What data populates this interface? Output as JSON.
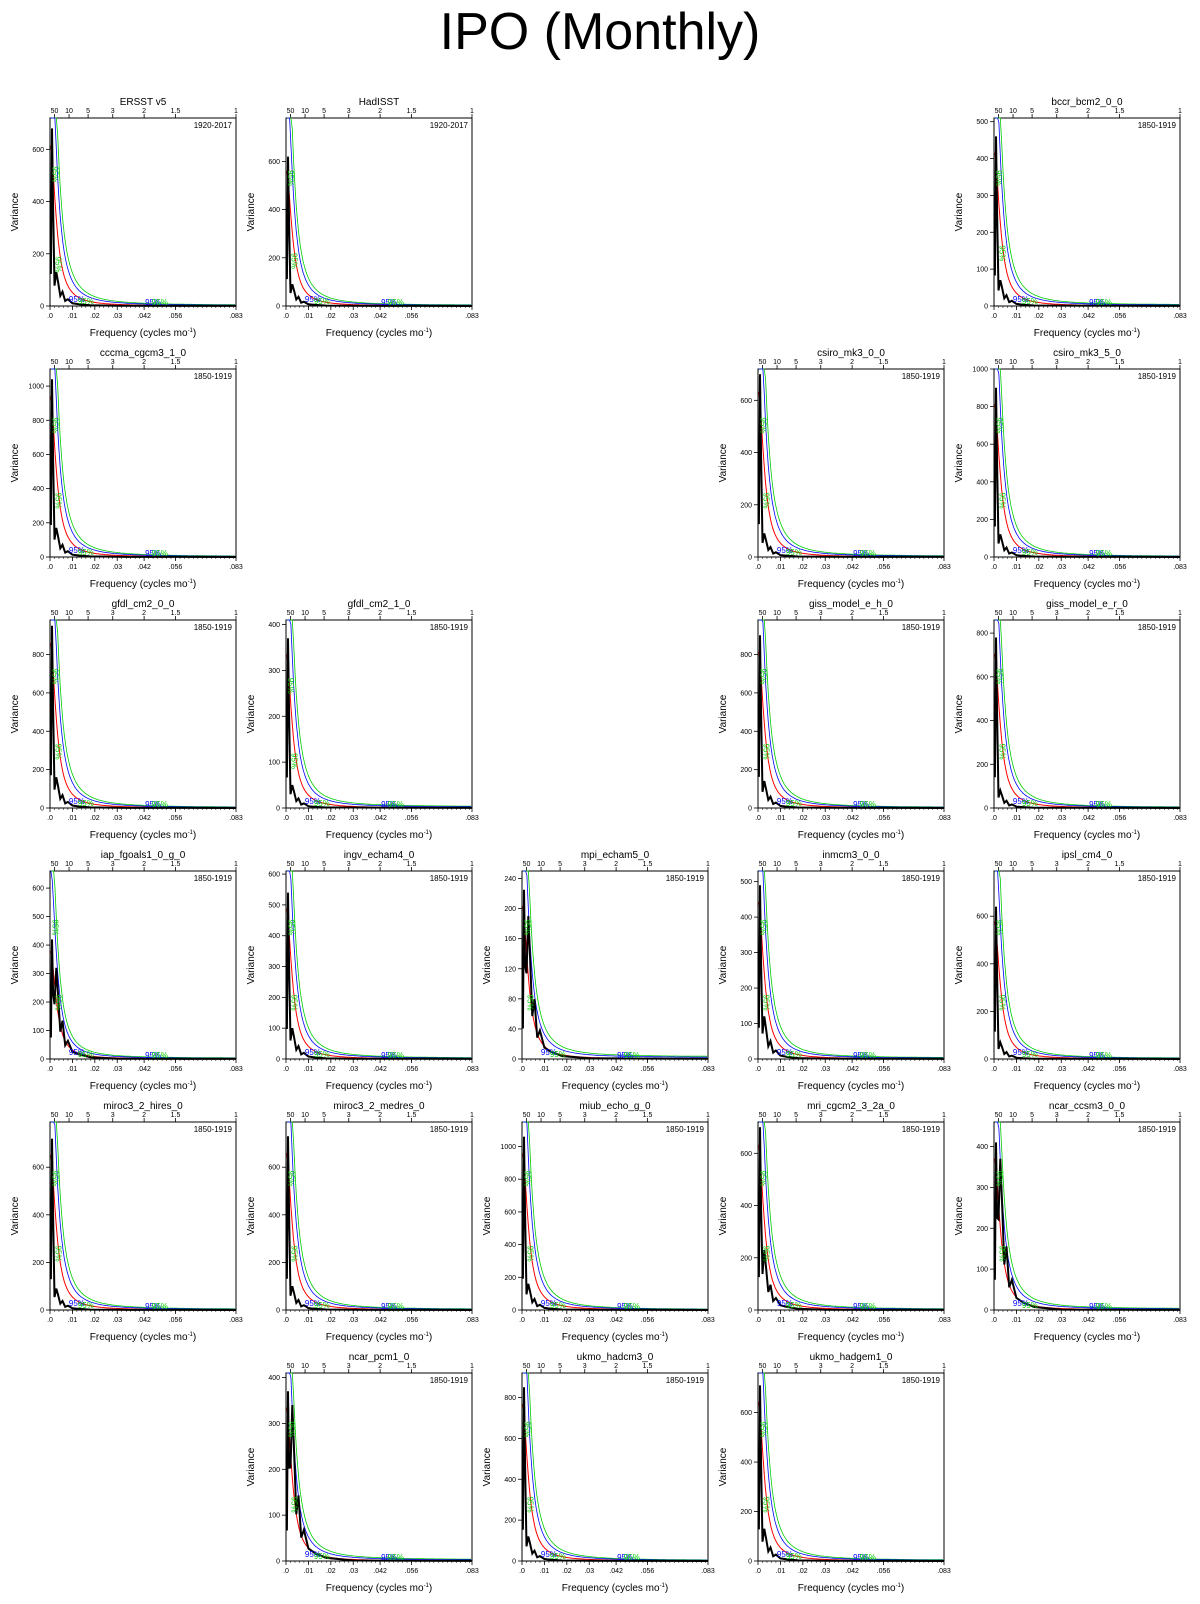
{
  "page": {
    "title": "IPO (Monthly)"
  },
  "panel_labels": {
    "xlabel_main": "Frequency (cycles mo",
    "xlabel_sup": "-1",
    "xlabel_end": ")",
    "ylabel": "Variance",
    "sig_label": "95%",
    "xticks": [
      ".0",
      ".01",
      ".02",
      ".03",
      ".042",
      ".056",
      ".083"
    ],
    "period_ticks": [
      "50",
      "10",
      "5",
      "3",
      "2",
      "1.5",
      "1"
    ]
  },
  "colors": {
    "spectrum": "#000000",
    "red_noise": "#ff0000",
    "sig_95": "#0000ff",
    "sig_99": "#00cc00"
  },
  "chart_data": [
    {
      "type": "line",
      "title": "ERSST v5",
      "period": "1920-2017",
      "ylabel": "Variance",
      "xlim": [
        0,
        0.083
      ],
      "ylim": [
        0,
        720
      ],
      "yticks": [
        0,
        200,
        400,
        600
      ],
      "peak": 680,
      "sec": 130,
      "sig_pct_a": 0.7,
      "sig_pct_b": 0.22
    },
    {
      "type": "line",
      "title": "HadISST",
      "period": "1920-2017",
      "ylabel": "Variance",
      "xlim": [
        0,
        0.083
      ],
      "ylim": [
        0,
        780
      ],
      "yticks": [
        0,
        200,
        400,
        600
      ],
      "peak": 620,
      "sec": 90,
      "sig_pct_a": 0.68,
      "sig_pct_b": 0.24
    },
    {
      "type": "line",
      "title": "bccr_bcm2_0_0",
      "period": "1850-1919",
      "ylabel": "Variance",
      "xlim": [
        0,
        0.083
      ],
      "ylim": [
        0,
        510
      ],
      "yticks": [
        0,
        100,
        200,
        300,
        400,
        500
      ],
      "peak": 460,
      "sec": 70,
      "sig_pct_a": 0.68,
      "sig_pct_b": 0.28
    },
    {
      "type": "line",
      "title": "cccma_cgcm3_1_0",
      "period": "1850-1919",
      "ylabel": "Variance",
      "xlim": [
        0,
        0.083
      ],
      "ylim": [
        0,
        1100
      ],
      "yticks": [
        0,
        200,
        400,
        600,
        800,
        1000
      ],
      "peak": 1040,
      "sec": 170,
      "sig_pct_a": 0.7,
      "sig_pct_b": 0.3
    },
    {
      "type": "line",
      "title": "csiro_mk3_0_0",
      "period": "1850-1919",
      "ylabel": "Variance",
      "xlim": [
        0,
        0.083
      ],
      "ylim": [
        0,
        720
      ],
      "yticks": [
        0,
        200,
        400,
        600
      ],
      "peak": 700,
      "sec": 90,
      "sig_pct_a": 0.7,
      "sig_pct_b": 0.3
    },
    {
      "type": "line",
      "title": "csiro_mk3_5_0",
      "period": "1850-1919",
      "ylabel": "Variance",
      "xlim": [
        0,
        0.083
      ],
      "ylim": [
        0,
        1000
      ],
      "yticks": [
        0,
        200,
        400,
        600,
        800,
        1000
      ],
      "peak": 900,
      "sec": 120,
      "sig_pct_a": 0.7,
      "sig_pct_b": 0.3
    },
    {
      "type": "line",
      "title": "gfdl_cm2_0_0",
      "period": "1850-1919",
      "ylabel": "Variance",
      "xlim": [
        0,
        0.083
      ],
      "ylim": [
        0,
        980
      ],
      "yticks": [
        0,
        200,
        400,
        600,
        800
      ],
      "peak": 950,
      "sec": 160,
      "sig_pct_a": 0.7,
      "sig_pct_b": 0.3
    },
    {
      "type": "line",
      "title": "gfdl_cm2_1_0",
      "period": "1850-1919",
      "ylabel": "Variance",
      "xlim": [
        0,
        0.083
      ],
      "ylim": [
        0,
        410
      ],
      "yticks": [
        0,
        100,
        200,
        300,
        400
      ],
      "peak": 370,
      "sec": 50,
      "sig_pct_a": 0.65,
      "sig_pct_b": 0.25
    },
    {
      "type": "line",
      "title": "giss_model_e_h_0",
      "period": "1850-1919",
      "ylabel": "Variance",
      "xlim": [
        0,
        0.083
      ],
      "ylim": [
        0,
        980
      ],
      "yticks": [
        0,
        200,
        400,
        600,
        800
      ],
      "peak": 900,
      "sec": 140,
      "sig_pct_a": 0.7,
      "sig_pct_b": 0.3
    },
    {
      "type": "line",
      "title": "giss_model_e_r_0",
      "period": "1850-1919",
      "ylabel": "Variance",
      "xlim": [
        0,
        0.083
      ],
      "ylim": [
        0,
        860
      ],
      "yticks": [
        0,
        200,
        400,
        600,
        800
      ],
      "peak": 780,
      "sec": 80,
      "sig_pct_a": 0.7,
      "sig_pct_b": 0.3
    },
    {
      "type": "line",
      "title": "iap_fgoals1_0_g_0",
      "period": "1850-1919",
      "ylabel": "Variance",
      "xlim": [
        0,
        0.083
      ],
      "ylim": [
        0,
        660
      ],
      "yticks": [
        0,
        100,
        200,
        300,
        400,
        500,
        600
      ],
      "peak": 420,
      "sec": 320,
      "sig_pct_a": 0.7,
      "sig_pct_b": 0.3
    },
    {
      "type": "line",
      "title": "ingv_echam4_0",
      "period": "1850-1919",
      "ylabel": "Variance",
      "xlim": [
        0,
        0.083
      ],
      "ylim": [
        0,
        610
      ],
      "yticks": [
        0,
        100,
        200,
        300,
        400,
        500,
        600
      ],
      "peak": 540,
      "sec": 100,
      "sig_pct_a": 0.7,
      "sig_pct_b": 0.3
    },
    {
      "type": "line",
      "title": "mpi_echam5_0",
      "period": "1850-1919",
      "ylabel": "Variance",
      "xlim": [
        0,
        0.083
      ],
      "ylim": [
        0,
        250
      ],
      "yticks": [
        0,
        40,
        80,
        120,
        160,
        200,
        240
      ],
      "peak": 225,
      "sec": 190,
      "sig_pct_a": 0.7,
      "sig_pct_b": 0.3
    },
    {
      "type": "line",
      "title": "inmcm3_0_0",
      "period": "1850-1919",
      "ylabel": "Variance",
      "xlim": [
        0,
        0.083
      ],
      "ylim": [
        0,
        530
      ],
      "yticks": [
        0,
        100,
        200,
        300,
        400,
        500
      ],
      "peak": 490,
      "sec": 120,
      "sig_pct_a": 0.7,
      "sig_pct_b": 0.3
    },
    {
      "type": "line",
      "title": "ipsl_cm4_0",
      "period": "1850-1919",
      "ylabel": "Variance",
      "xlim": [
        0,
        0.083
      ],
      "ylim": [
        0,
        790
      ],
      "yticks": [
        0,
        200,
        400,
        600
      ],
      "peak": 640,
      "sec": 70,
      "sig_pct_a": 0.7,
      "sig_pct_b": 0.3
    },
    {
      "type": "line",
      "title": "miroc3_2_hires_0",
      "period": "1850-1919",
      "ylabel": "Variance",
      "xlim": [
        0,
        0.083
      ],
      "ylim": [
        0,
        790
      ],
      "yticks": [
        0,
        200,
        400,
        600
      ],
      "peak": 720,
      "sec": 90,
      "sig_pct_a": 0.7,
      "sig_pct_b": 0.3
    },
    {
      "type": "line",
      "title": "miroc3_2_medres_0",
      "period": "1850-1919",
      "ylabel": "Variance",
      "xlim": [
        0,
        0.083
      ],
      "ylim": [
        0,
        790
      ],
      "yticks": [
        0,
        200,
        400,
        600
      ],
      "peak": 730,
      "sec": 100,
      "sig_pct_a": 0.7,
      "sig_pct_b": 0.3
    },
    {
      "type": "line",
      "title": "miub_echo_g_0",
      "period": "1850-1919",
      "ylabel": "Variance",
      "xlim": [
        0,
        0.083
      ],
      "ylim": [
        0,
        1150
      ],
      "yticks": [
        0,
        200,
        400,
        600,
        800,
        1000
      ],
      "peak": 1060,
      "sec": 160,
      "sig_pct_a": 0.7,
      "sig_pct_b": 0.3
    },
    {
      "type": "line",
      "title": "mri_cgcm2_3_2a_0",
      "period": "1850-1919",
      "ylabel": "Variance",
      "xlim": [
        0,
        0.083
      ],
      "ylim": [
        0,
        720
      ],
      "yticks": [
        0,
        200,
        400,
        600
      ],
      "peak": 700,
      "sec": 230,
      "sig_pct_a": 0.7,
      "sig_pct_b": 0.3
    },
    {
      "type": "line",
      "title": "ncar_ccsm3_0_0",
      "period": "1850-1919",
      "ylabel": "Variance",
      "xlim": [
        0,
        0.083
      ],
      "ylim": [
        0,
        460
      ],
      "yticks": [
        0,
        100,
        200,
        300,
        400
      ],
      "peak": 410,
      "sec": 370,
      "sig_pct_a": 0.7,
      "sig_pct_b": 0.3
    },
    {
      "type": "line",
      "title": "ncar_pcm1_0",
      "period": "1850-1919",
      "ylabel": "Variance",
      "xlim": [
        0,
        0.083
      ],
      "ylim": [
        0,
        410
      ],
      "yticks": [
        0,
        100,
        200,
        300,
        400
      ],
      "peak": 370,
      "sec": 340,
      "sig_pct_a": 0.7,
      "sig_pct_b": 0.3
    },
    {
      "type": "line",
      "title": "ukmo_hadcm3_0",
      "period": "1850-1919",
      "ylabel": "Variance",
      "xlim": [
        0,
        0.083
      ],
      "ylim": [
        0,
        920
      ],
      "yticks": [
        0,
        200,
        400,
        600,
        800
      ],
      "peak": 850,
      "sec": 120,
      "sig_pct_a": 0.7,
      "sig_pct_b": 0.3
    },
    {
      "type": "line",
      "title": "ukmo_hadgem1_0",
      "period": "1850-1919",
      "ylabel": "Variance",
      "xlim": [
        0,
        0.083
      ],
      "ylim": [
        0,
        760
      ],
      "yticks": [
        0,
        200,
        400,
        600
      ],
      "peak": 710,
      "sec": 130,
      "sig_pct_a": 0.7,
      "sig_pct_b": 0.3
    }
  ]
}
